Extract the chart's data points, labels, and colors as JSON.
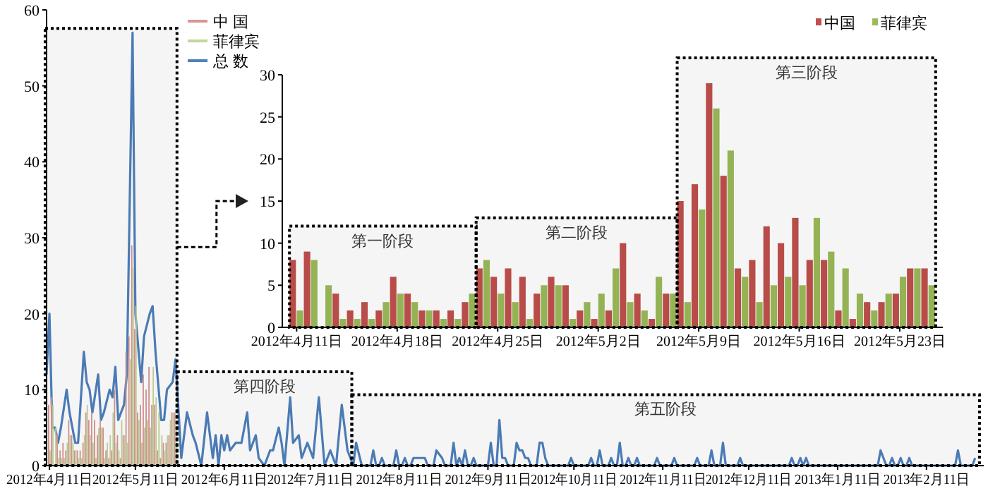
{
  "chart_data": [
    {
      "type": "bar",
      "xlim": [
        "2012-04-10",
        "2013-03-03"
      ],
      "ylim": [
        0,
        60
      ],
      "yticks": [
        0,
        10,
        20,
        30,
        40,
        50,
        60
      ],
      "xticks": [
        {
          "value": "2012-04-11",
          "label": "2012年4月11日"
        },
        {
          "value": "2012-05-11",
          "label": "2012年5月11日"
        },
        {
          "value": "2012-06-11",
          "label": "2012年6月11日"
        },
        {
          "value": "2012-07-11",
          "label": "2012年7月11日"
        },
        {
          "value": "2012-08-11",
          "label": "2012年8月11日"
        },
        {
          "value": "2012-09-11",
          "label": "2012年9月11日"
        },
        {
          "value": "2012-10-11",
          "label": "2012年10月11日"
        },
        {
          "value": "2012-11-11",
          "label": "2012年11月11日"
        },
        {
          "value": "2012-12-11",
          "label": "2012年12月11日"
        },
        {
          "value": "2013-01-11",
          "label": "2013年1月11日"
        },
        {
          "value": "2013-02-11",
          "label": "2013年2月11日"
        }
      ],
      "legend": "top left",
      "x": [
        "2012-04-11",
        "2012-04-12",
        "2012-04-13",
        "2012-04-14",
        "2012-04-15",
        "2012-04-16",
        "2012-04-17",
        "2012-04-18",
        "2012-04-19",
        "2012-04-20",
        "2012-04-21",
        "2012-04-22",
        "2012-04-23",
        "2012-04-24",
        "2012-04-25",
        "2012-04-26",
        "2012-04-27",
        "2012-04-28",
        "2012-04-29",
        "2012-04-30",
        "2012-05-01",
        "2012-05-02",
        "2012-05-03",
        "2012-05-04",
        "2012-05-05",
        "2012-05-06",
        "2012-05-07",
        "2012-05-08",
        "2012-05-09",
        "2012-05-10",
        "2012-05-11",
        "2012-05-12",
        "2012-05-13",
        "2012-05-14",
        "2012-05-15",
        "2012-05-16",
        "2012-05-17",
        "2012-05-18",
        "2012-05-19",
        "2012-05-20",
        "2012-05-21",
        "2012-05-22",
        "2012-05-23",
        "2012-05-24",
        "2012-05-25"
      ],
      "series": [
        {
          "name": "中 国",
          "color": "#d99694",
          "values": [
            8,
            9,
            0,
            4,
            2,
            3,
            2,
            6,
            4,
            2,
            2,
            2,
            3,
            7,
            6,
            7,
            6,
            4,
            6,
            5,
            2,
            1,
            2,
            10,
            4,
            1,
            4,
            15,
            17,
            29,
            18,
            7,
            8,
            12,
            10,
            13,
            8,
            8,
            2,
            1,
            3,
            3,
            4,
            7,
            7
          ]
        },
        {
          "name": "菲律宾",
          "color": "#c3d69b",
          "values": [
            2,
            8,
            5,
            1,
            1,
            1,
            3,
            4,
            3,
            2,
            1,
            1,
            4,
            8,
            4,
            3,
            1,
            5,
            5,
            1,
            3,
            4,
            7,
            3,
            2,
            6,
            4,
            3,
            14,
            26,
            21,
            6,
            3,
            5,
            6,
            5,
            13,
            9,
            7,
            4,
            2,
            4,
            6,
            7,
            5
          ]
        },
        {
          "name": "总 数",
          "color": "#4f81bd",
          "type": "line",
          "x": [
            "2012-04-10",
            "2012-04-11",
            "2012-04-12",
            "2012-04-13",
            "2012-04-14",
            "2012-04-15",
            "2012-04-17",
            "2012-04-18",
            "2012-04-19",
            "2012-04-20",
            "2012-04-21",
            "2012-04-23",
            "2012-04-24",
            "2012-04-25",
            "2012-04-26",
            "2012-04-28",
            "2012-04-29",
            "2012-04-30",
            "2012-05-02",
            "2012-05-03",
            "2012-05-04",
            "2012-05-05",
            "2012-05-07",
            "2012-05-08",
            "2012-05-10",
            "2012-05-11",
            "2012-05-13",
            "2012-05-14",
            "2012-05-16",
            "2012-05-17",
            "2012-05-18",
            "2012-05-20",
            "2012-05-21",
            "2012-05-22",
            "2012-05-24",
            "2012-05-25",
            "2012-05-27",
            "2012-05-29",
            "2012-05-31",
            "2012-06-01",
            "2012-06-03",
            "2012-06-05",
            "2012-06-07",
            "2012-06-08",
            "2012-06-09",
            "2012-06-10",
            "2012-06-11",
            "2012-06-12",
            "2012-06-13",
            "2012-06-15",
            "2012-06-17",
            "2012-06-19",
            "2012-06-20",
            "2012-06-22",
            "2012-06-23",
            "2012-06-25",
            "2012-06-27",
            "2012-06-28",
            "2012-06-30",
            "2012-07-01",
            "2012-07-02",
            "2012-07-04",
            "2012-07-05",
            "2012-07-07",
            "2012-07-08",
            "2012-07-10",
            "2012-07-12",
            "2012-07-14",
            "2012-07-16",
            "2012-07-18",
            "2012-07-20",
            "2012-07-22",
            "2012-07-24",
            "2012-07-26",
            "2012-07-27",
            "2012-07-29",
            "2012-08-01",
            "2012-08-02",
            "2012-08-03",
            "2012-08-04",
            "2012-08-05",
            "2012-08-06",
            "2012-08-09",
            "2012-08-10",
            "2012-08-11",
            "2012-08-12",
            "2012-08-13",
            "2012-08-14",
            "2012-08-15",
            "2012-08-16",
            "2012-08-20",
            "2012-08-21",
            "2012-08-23",
            "2012-08-24",
            "2012-08-26",
            "2012-08-27",
            "2012-08-29",
            "2012-08-30",
            "2012-08-31",
            "2012-09-01",
            "2012-09-02",
            "2012-09-03",
            "2012-09-04",
            "2012-09-05",
            "2012-09-06",
            "2012-09-07",
            "2012-09-11",
            "2012-09-12",
            "2012-09-13",
            "2012-09-14",
            "2012-09-15",
            "2012-09-16",
            "2012-09-17",
            "2012-09-18",
            "2012-09-20",
            "2012-09-21",
            "2012-09-22",
            "2012-09-23",
            "2012-09-24",
            "2012-09-25",
            "2012-09-26",
            "2012-09-28",
            "2012-09-29",
            "2012-09-30",
            "2012-10-01",
            "2012-10-02",
            "2012-10-09",
            "2012-10-10",
            "2012-10-11",
            "2012-10-16",
            "2012-10-17",
            "2012-10-18",
            "2012-10-19",
            "2012-10-20",
            "2012-10-21",
            "2012-10-23",
            "2012-10-24",
            "2012-10-25",
            "2012-10-26",
            "2012-10-27",
            "2012-10-28",
            "2012-10-29",
            "2012-10-30",
            "2012-10-31",
            "2012-11-01",
            "2012-11-02",
            "2012-11-03",
            "2012-11-08",
            "2012-11-09",
            "2012-11-10",
            "2012-11-14",
            "2012-11-15",
            "2012-11-16",
            "2012-11-22",
            "2012-11-23",
            "2012-11-24",
            "2012-11-27",
            "2012-11-28",
            "2012-11-29",
            "2012-12-01",
            "2012-12-02",
            "2012-12-03",
            "2012-12-07",
            "2012-12-08",
            "2012-12-09",
            "2012-12-25",
            "2012-12-26",
            "2012-12-27",
            "2012-12-28",
            "2012-12-29",
            "2012-12-30",
            "2012-12-31",
            "2013-01-01",
            "2013-01-25",
            "2013-01-26",
            "2013-01-27",
            "2013-01-28",
            "2013-01-29",
            "2013-01-30",
            "2013-01-31",
            "2013-02-01",
            "2013-02-02",
            "2013-02-03",
            "2013-02-04",
            "2013-02-05",
            "2013-02-06",
            "2013-02-21",
            "2013-02-22",
            "2013-02-23",
            "2013-02-27",
            "2013-02-28"
          ],
          "values": [
            12,
            20,
            5,
            5,
            3,
            5,
            10,
            7,
            5,
            3,
            3,
            15,
            11,
            10,
            7,
            12,
            6,
            7,
            10,
            9,
            13,
            6,
            8,
            12,
            57,
            20,
            11,
            17,
            20,
            21,
            15,
            6,
            6,
            10,
            11,
            14,
            1,
            7,
            4,
            3,
            0,
            7,
            1,
            4,
            0,
            4,
            2,
            4,
            2,
            3,
            3,
            7,
            2,
            4,
            1,
            0,
            2,
            2,
            5,
            3,
            0,
            9,
            3,
            4,
            1,
            3,
            1,
            9,
            0,
            2,
            0,
            8,
            2,
            0,
            3,
            0,
            0,
            2,
            0,
            0,
            1,
            0,
            0,
            2,
            0,
            0,
            1,
            0,
            0,
            1,
            1,
            0,
            0,
            2,
            1,
            0,
            0,
            3,
            0,
            1,
            0,
            2,
            0,
            0,
            1,
            0,
            0,
            3,
            0,
            0,
            6,
            1,
            1,
            0,
            0,
            3,
            2,
            2,
            1,
            1,
            0,
            0,
            3,
            3,
            1,
            0,
            0,
            1,
            0,
            0,
            1,
            0,
            0,
            2,
            0,
            0,
            1,
            0,
            0,
            3,
            0,
            0,
            1,
            0,
            0,
            1,
            0,
            0,
            1,
            0,
            0,
            1,
            0,
            0,
            1,
            0,
            0,
            2,
            0,
            0,
            3,
            0,
            0,
            1,
            0,
            0,
            1,
            0,
            0,
            1,
            0,
            1,
            0,
            0,
            2,
            1,
            0,
            0,
            1,
            0,
            0,
            1,
            0,
            0,
            1,
            0,
            0,
            2,
            0,
            0,
            1
          ]
        }
      ],
      "bands": [
        {
          "axis": "x",
          "from": "2012-04-09T12:00",
          "to": "2012-05-25T12:00",
          "label": null
        },
        {
          "axis": "x",
          "from": "2012-05-25T12:00",
          "to": "2012-07-25T12:00",
          "label": "第四阶段"
        },
        {
          "axis": "x",
          "from": "2012-07-25T12:00",
          "to": "2013-03-01T12:00",
          "label": "第五阶段"
        }
      ]
    },
    {
      "type": "bar",
      "xlim": [
        "2012-04-10",
        "2012-05-26"
      ],
      "ylim": [
        0,
        30
      ],
      "yticks": [
        0,
        5,
        10,
        15,
        20,
        25,
        30
      ],
      "xticks": [
        {
          "value": "2012-04-11",
          "label": "2012年4月11日"
        },
        {
          "value": "2012-04-18",
          "label": "2012年4月18日"
        },
        {
          "value": "2012-04-25",
          "label": "2012年4月25日"
        },
        {
          "value": "2012-05-02",
          "label": "2012年5月2日"
        },
        {
          "value": "2012-05-09",
          "label": "2012年5月9日"
        },
        {
          "value": "2012-05-16",
          "label": "2012年5月16日"
        },
        {
          "value": "2012-05-23",
          "label": "2012年5月23日"
        }
      ],
      "legend": "top right",
      "x": [
        "2012-04-11",
        "2012-04-12",
        "2012-04-13",
        "2012-04-14",
        "2012-04-15",
        "2012-04-16",
        "2012-04-17",
        "2012-04-18",
        "2012-04-19",
        "2012-04-20",
        "2012-04-21",
        "2012-04-22",
        "2012-04-23",
        "2012-04-24",
        "2012-04-25",
        "2012-04-26",
        "2012-04-27",
        "2012-04-28",
        "2012-04-29",
        "2012-04-30",
        "2012-05-01",
        "2012-05-02",
        "2012-05-03",
        "2012-05-04",
        "2012-05-05",
        "2012-05-06",
        "2012-05-07",
        "2012-05-08",
        "2012-05-09",
        "2012-05-10",
        "2012-05-11",
        "2012-05-12",
        "2012-05-13",
        "2012-05-14",
        "2012-05-15",
        "2012-05-16",
        "2012-05-17",
        "2012-05-18",
        "2012-05-19",
        "2012-05-20",
        "2012-05-21",
        "2012-05-22",
        "2012-05-23",
        "2012-05-24",
        "2012-05-25"
      ],
      "series": [
        {
          "name": "中国",
          "color": "#c0504d",
          "values": [
            8,
            9,
            0,
            4,
            2,
            3,
            2,
            6,
            4,
            2,
            2,
            2,
            3,
            7,
            6,
            7,
            6,
            4,
            6,
            5,
            2,
            1,
            2,
            10,
            4,
            1,
            4,
            15,
            17,
            29,
            18,
            7,
            8,
            12,
            10,
            13,
            8,
            8,
            2,
            1,
            3,
            3,
            4,
            7,
            7
          ]
        },
        {
          "name": "菲律宾",
          "color": "#9bbb59",
          "values": [
            2,
            8,
            5,
            1,
            1,
            1,
            3,
            4,
            3,
            2,
            1,
            1,
            4,
            8,
            4,
            3,
            1,
            5,
            5,
            1,
            3,
            4,
            7,
            3,
            2,
            6,
            4,
            3,
            14,
            26,
            21,
            6,
            3,
            5,
            6,
            5,
            13,
            9,
            7,
            4,
            2,
            4,
            6,
            7,
            5
          ]
        }
      ],
      "bands": [
        {
          "axis": "x",
          "from": "2012-04-10T12:00",
          "to": "2012-04-23T12:00",
          "label": "第一阶段"
        },
        {
          "axis": "x",
          "from": "2012-04-23T12:00",
          "to": "2012-05-07T12:00",
          "label": "第二阶段"
        },
        {
          "axis": "x",
          "from": "2012-05-07T12:00",
          "to": "2012-05-25T12:00",
          "label": "第三阶段"
        }
      ]
    }
  ]
}
